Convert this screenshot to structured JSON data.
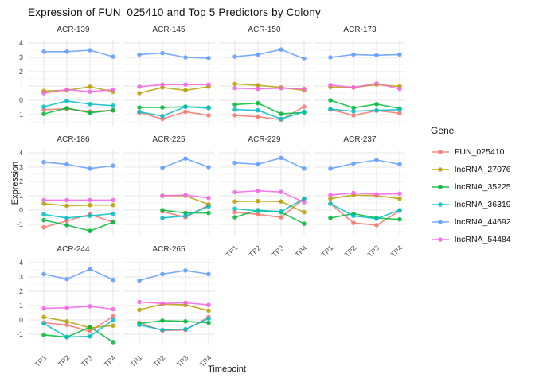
{
  "chart_data": {
    "type": "line",
    "title": "Expression of FUN_025410 and Top 5 Predictors by Colony",
    "xlabel": "Timepoint",
    "ylabel": "Expression",
    "legend_title": "Gene",
    "x_categories": [
      "TP1",
      "TP2",
      "TP3",
      "TP4"
    ],
    "y_ticks": [
      4,
      3,
      2,
      1,
      0,
      -1
    ],
    "ylim": [
      -1.9,
      4.3
    ],
    "grid": true,
    "legend_position": "right",
    "series_order": [
      "FUN_025410",
      "lncRNA_27076",
      "lncRNA_35225",
      "lncRNA_36319",
      "lncRNA_44692",
      "lncRNA_54484"
    ],
    "series_colors": {
      "FUN_025410": "#F8766D",
      "lncRNA_27076": "#B79F00",
      "lncRNA_35225": "#00BA38",
      "lncRNA_36319": "#00BFC4",
      "lncRNA_44692": "#619CFF",
      "lncRNA_54484": "#F564E3"
    },
    "facets": [
      {
        "name": "ACR-139",
        "series": {
          "FUN_025410": [
            -0.65,
            -0.6,
            -0.78,
            -0.7
          ],
          "lncRNA_27076": [
            0.65,
            0.7,
            0.95,
            0.6
          ],
          "lncRNA_35225": [
            -0.95,
            -0.55,
            -0.87,
            -0.7
          ],
          "lncRNA_36319": [
            -0.45,
            -0.05,
            -0.27,
            -0.38
          ],
          "lncRNA_44692": [
            3.4,
            3.4,
            3.5,
            3.05
          ],
          "lncRNA_54484": [
            0.5,
            0.75,
            0.6,
            0.75
          ]
        }
      },
      {
        "name": "ACR-145",
        "series": {
          "FUN_025410": [
            -0.85,
            -1.3,
            -0.8,
            -1.05
          ],
          "lncRNA_27076": [
            0.5,
            0.9,
            0.7,
            0.95
          ],
          "lncRNA_35225": [
            -0.5,
            -0.5,
            -0.45,
            -0.5
          ],
          "lncRNA_36319": [
            -0.8,
            -1.1,
            -0.45,
            -0.55
          ],
          "lncRNA_44692": [
            3.2,
            3.3,
            3.0,
            2.95
          ],
          "lncRNA_54484": [
            0.95,
            1.1,
            1.1,
            1.1
          ]
        }
      },
      {
        "name": "ACR-150",
        "series": {
          "FUN_025410": [
            -1.05,
            -1.15,
            -1.35,
            -0.45
          ],
          "lncRNA_27076": [
            1.15,
            1.05,
            0.9,
            0.7
          ],
          "lncRNA_35225": [
            -0.3,
            -0.2,
            -0.95,
            -0.85
          ],
          "lncRNA_36319": [
            -0.65,
            -0.7,
            -1.3,
            -0.8
          ],
          "lncRNA_44692": [
            3.05,
            3.2,
            3.55,
            2.9
          ],
          "lncRNA_54484": [
            0.85,
            0.8,
            0.85,
            0.8
          ]
        }
      },
      {
        "name": "ACR-173",
        "series": {
          "FUN_025410": [
            -0.65,
            -1.05,
            -0.73,
            -0.9
          ],
          "lncRNA_27076": [
            0.93,
            0.9,
            1.1,
            0.97
          ],
          "lncRNA_35225": [
            0.0,
            -0.53,
            -0.27,
            -0.57
          ],
          "lncRNA_36319": [
            -0.62,
            -0.77,
            -0.7,
            -0.65
          ],
          "lncRNA_44692": [
            3.0,
            3.2,
            3.15,
            3.2
          ],
          "lncRNA_54484": [
            1.07,
            0.9,
            1.18,
            0.8
          ]
        }
      },
      {
        "name": "ACR-186",
        "series": {
          "FUN_025410": [
            -1.2,
            -0.75,
            -0.3,
            -0.85
          ],
          "lncRNA_27076": [
            0.45,
            0.3,
            0.35,
            0.35
          ],
          "lncRNA_35225": [
            -0.7,
            -1.05,
            -1.45,
            -0.85
          ],
          "lncRNA_36319": [
            -0.3,
            -0.55,
            -0.4,
            -0.25
          ],
          "lncRNA_44692": [
            3.35,
            3.2,
            2.9,
            3.1
          ],
          "lncRNA_54484": [
            0.7,
            0.7,
            0.7,
            0.7
          ]
        }
      },
      {
        "name": "ACR-225",
        "series": {
          "FUN_025410": [
            null,
            -0.1,
            -0.5,
            0.35
          ],
          "lncRNA_27076": [
            null,
            1.0,
            1.0,
            0.4
          ],
          "lncRNA_35225": [
            null,
            0.0,
            -0.2,
            -0.2
          ],
          "lncRNA_36319": [
            null,
            -0.55,
            -0.4,
            0.25
          ],
          "lncRNA_44692": [
            null,
            2.95,
            3.6,
            3.0
          ],
          "lncRNA_54484": [
            null,
            1.0,
            1.05,
            0.85
          ]
        }
      },
      {
        "name": "ACR-229",
        "series": {
          "FUN_025410": [
            -0.15,
            -0.3,
            -0.5,
            0.8
          ],
          "lncRNA_27076": [
            0.6,
            0.63,
            0.6,
            -0.15
          ],
          "lncRNA_35225": [
            -0.5,
            0.0,
            -0.15,
            -0.95
          ],
          "lncRNA_36319": [
            0.1,
            -0.05,
            -0.1,
            0.8
          ],
          "lncRNA_44692": [
            3.3,
            3.2,
            3.65,
            2.9
          ],
          "lncRNA_54484": [
            1.25,
            1.35,
            1.27,
            0.55
          ]
        }
      },
      {
        "name": "ACR-237",
        "series": {
          "FUN_025410": [
            0.45,
            -0.9,
            -1.05,
            -0.05
          ],
          "lncRNA_27076": [
            0.8,
            1.05,
            1.0,
            0.8
          ],
          "lncRNA_35225": [
            -0.55,
            -0.25,
            -0.55,
            -0.65
          ],
          "lncRNA_36319": [
            0.45,
            -0.4,
            -0.6,
            0.0
          ],
          "lncRNA_44692": [
            2.9,
            3.25,
            3.5,
            3.2
          ],
          "lncRNA_54484": [
            1.05,
            1.2,
            1.1,
            1.15
          ]
        }
      },
      {
        "name": "ACR-244",
        "series": {
          "FUN_025410": [
            -0.2,
            -0.35,
            -0.8,
            0.25
          ],
          "lncRNA_27076": [
            0.2,
            -0.1,
            -0.55,
            -0.4
          ],
          "lncRNA_35225": [
            -1.05,
            -1.2,
            -0.5,
            -1.55
          ],
          "lncRNA_36319": [
            -0.25,
            -1.2,
            -1.15,
            0.0
          ],
          "lncRNA_44692": [
            3.2,
            2.85,
            3.55,
            2.8
          ],
          "lncRNA_54484": [
            0.8,
            0.85,
            0.95,
            0.75
          ]
        }
      },
      {
        "name": "ACR-265",
        "series": {
          "FUN_025410": [
            -0.2,
            -0.75,
            -0.7,
            0.2
          ],
          "lncRNA_27076": [
            0.7,
            1.1,
            1.05,
            0.65
          ],
          "lncRNA_35225": [
            -0.25,
            -0.05,
            -0.1,
            -0.2
          ],
          "lncRNA_36319": [
            -0.35,
            -0.7,
            -0.65,
            0.1
          ],
          "lncRNA_44692": [
            2.75,
            3.2,
            3.45,
            3.2
          ],
          "lncRNA_54484": [
            1.25,
            1.15,
            1.2,
            1.05
          ]
        }
      }
    ]
  }
}
